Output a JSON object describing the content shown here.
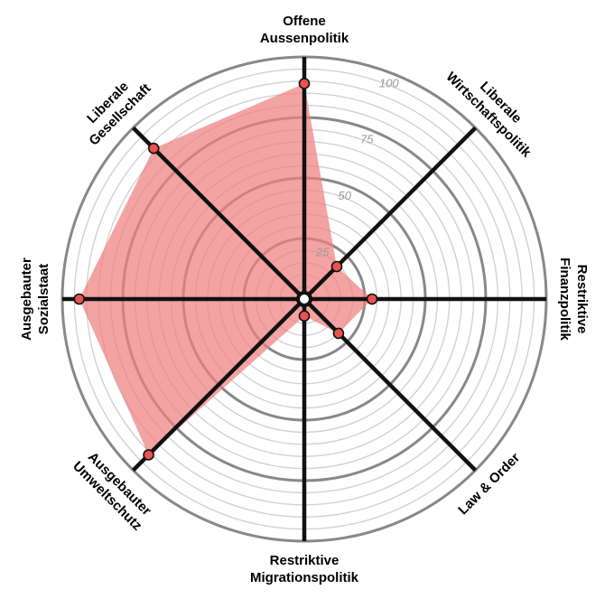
{
  "chart_data": {
    "type": "radar",
    "range": [
      0,
      100
    ],
    "ticks": [
      "25",
      "50",
      "75",
      "100"
    ],
    "axes": [
      {
        "lines": [
          "Offene",
          "Aussenpolitik"
        ],
        "value": 89
      },
      {
        "lines": [
          "Liberale",
          "Wirtschaftspolitik"
        ],
        "value": 19
      },
      {
        "lines": [
          "Restriktive",
          "Finanzpolitik"
        ],
        "value": 28
      },
      {
        "lines": [
          "Law & Order"
        ],
        "value": 20
      },
      {
        "lines": [
          "Restriktive",
          "Migrationspolitik"
        ],
        "value": 7
      },
      {
        "lines": [
          "Ausgebauter",
          "Umweltschutz"
        ],
        "value": 91
      },
      {
        "lines": [
          "Ausgebauter",
          "Sozialstaat"
        ],
        "value": 93
      },
      {
        "lines": [
          "Liberale",
          "Gesellschaft"
        ],
        "value": 88
      }
    ],
    "colors": {
      "area_fill": "#f08080",
      "point_fill": "#e8534f",
      "spoke": "#111111",
      "ring_major": "#888888",
      "ring_minor": "#d2d2d2",
      "tick_text": "#9a9a9a"
    }
  }
}
